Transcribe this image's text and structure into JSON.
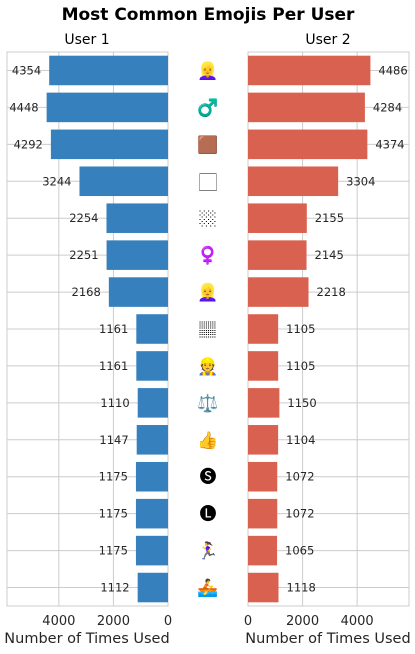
{
  "chart_data": {
    "type": "bar",
    "title": "Most Common Emojis Per User",
    "emojis": [
      "👱‍♀️",
      "♂️",
      "🟫",
      "🏻",
      "🏼",
      "♀️",
      "👱‍♀️",
      "🏽",
      "👷",
      "⚖️",
      "👍",
      "🅢",
      "🅛",
      "🏃‍♀️",
      "🚣"
    ],
    "series": [
      {
        "name": "User 1",
        "color": "#3580bd",
        "values": [
          4354,
          4448,
          4292,
          3244,
          2254,
          2251,
          2168,
          1161,
          1161,
          1110,
          1147,
          1175,
          1175,
          1175,
          1112
        ]
      },
      {
        "name": "User 2",
        "color": "#d9614f",
        "values": [
          4486,
          4284,
          4374,
          3304,
          2155,
          2145,
          2218,
          1105,
          1105,
          1150,
          1104,
          1072,
          1072,
          1065,
          1118
        ]
      }
    ],
    "xlabel": "Number of Times Used",
    "xlim": [
      0,
      5900
    ],
    "xticks": [
      0,
      2000,
      4000
    ],
    "grid": true
  }
}
